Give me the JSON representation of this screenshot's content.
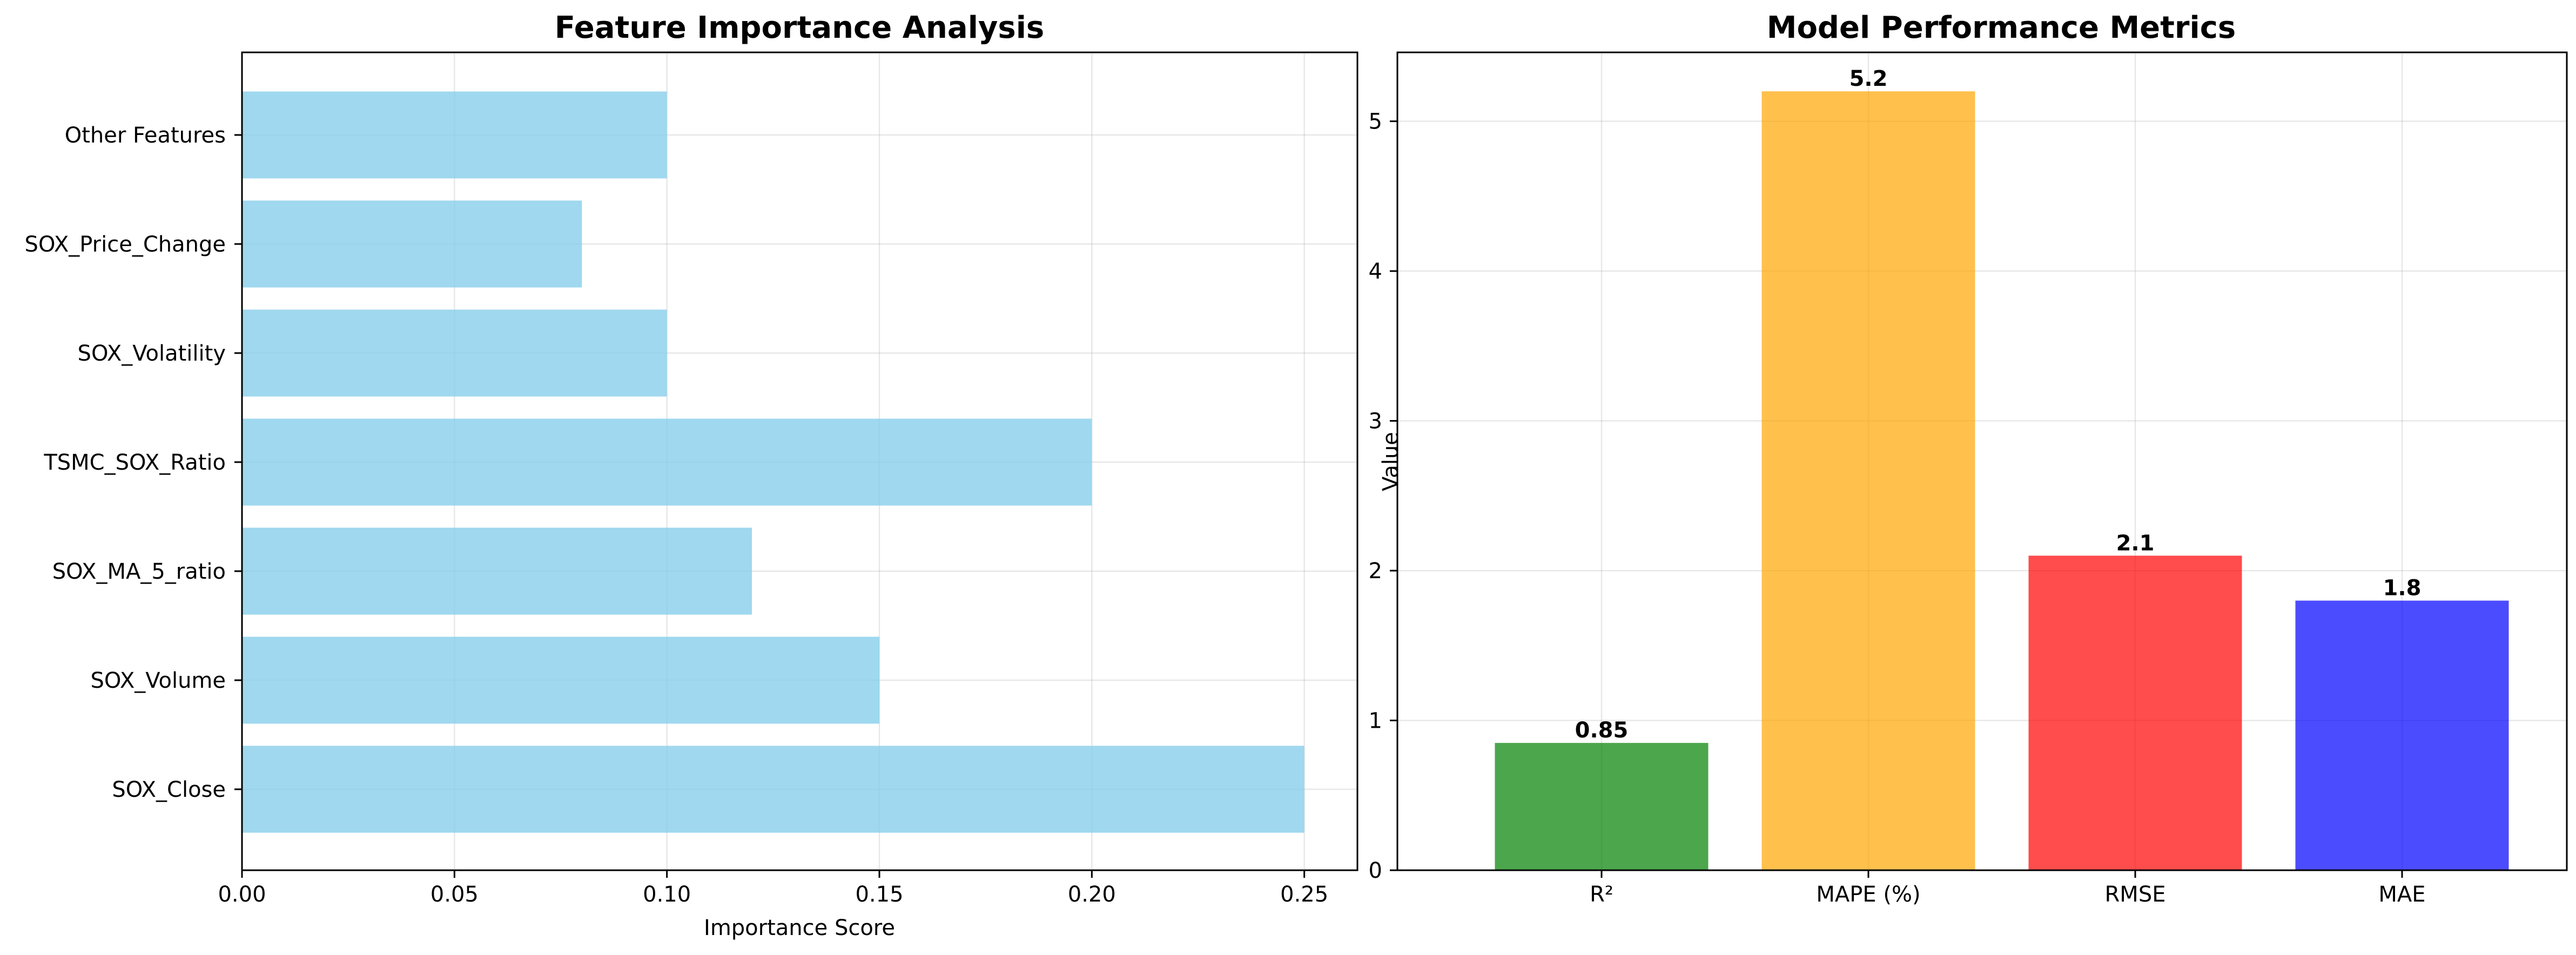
{
  "chart_data": [
    {
      "type": "bar",
      "orientation": "horizontal",
      "title": "Feature Importance Analysis",
      "xlabel": "Importance Score",
      "ylabel": "",
      "categories": [
        "SOX_Close",
        "SOX_Volume",
        "SOX_MA_5_ratio",
        "TSMC_SOX_Ratio",
        "SOX_Volatility",
        "SOX_Price_Change",
        "Other Features"
      ],
      "values": [
        0.25,
        0.15,
        0.12,
        0.2,
        0.1,
        0.08,
        0.1
      ],
      "xlim": [
        0,
        0.2625
      ],
      "xticks": [
        "0.00",
        "0.05",
        "0.10",
        "0.15",
        "0.20",
        "0.25"
      ],
      "grid": true,
      "bar_color": "#87ceeb"
    },
    {
      "type": "bar",
      "orientation": "vertical",
      "title": "Model Performance Metrics",
      "xlabel": "",
      "ylabel": "Value",
      "categories": [
        "R²",
        "MAPE (%)",
        "RMSE",
        "MAE"
      ],
      "values": [
        0.85,
        5.2,
        2.1,
        1.8
      ],
      "value_labels": [
        "0.85",
        "5.2",
        "2.1",
        "1.8"
      ],
      "ylim": [
        0,
        5.46
      ],
      "yticks": [
        "0",
        "1",
        "2",
        "3",
        "4",
        "5"
      ],
      "grid": true,
      "bar_colors": [
        "#008000",
        "#ffa500",
        "#ff0000",
        "#0000ff"
      ]
    }
  ]
}
